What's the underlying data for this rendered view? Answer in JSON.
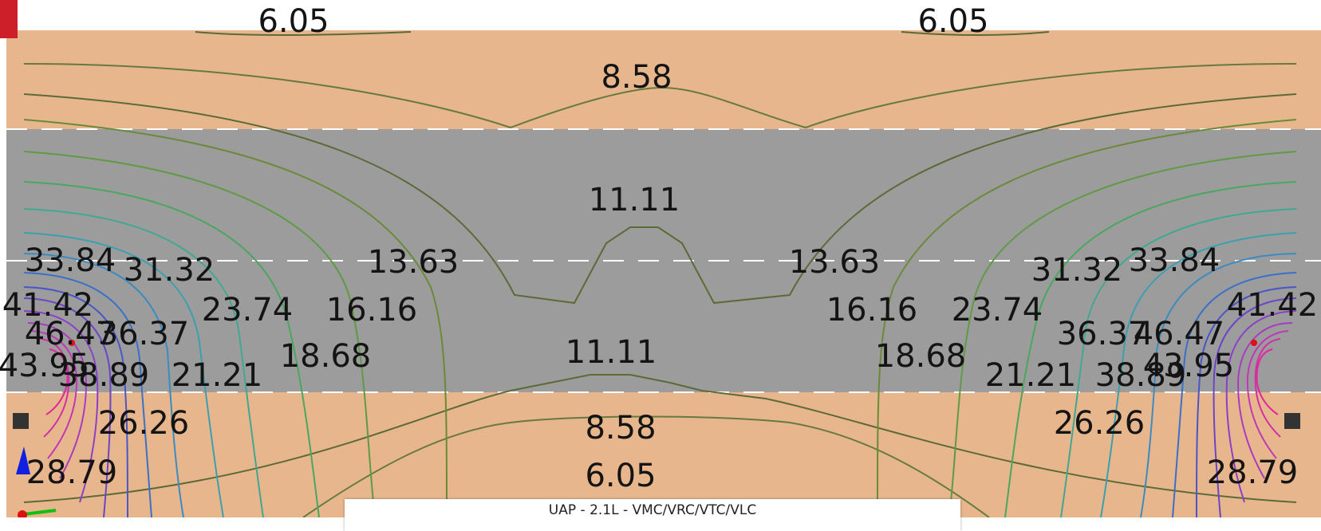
{
  "title": "",
  "colors": {
    "slab": "#e8b68c",
    "beam": "#9c9c9c",
    "gridline": "#ffffff",
    "label": "#141414",
    "support": "#333333",
    "axis_x": "#e01010",
    "axis_y": "#10c010",
    "axis_z": "#1020e0"
  },
  "contour_labels": [
    {
      "id": "c-605-tl",
      "text": "6.05"
    },
    {
      "id": "c-605-tr",
      "text": "6.05"
    },
    {
      "id": "c-858-t",
      "text": "8.58"
    },
    {
      "id": "c-1111-t",
      "text": "11.11"
    },
    {
      "id": "c-3384-l",
      "text": "33.84"
    },
    {
      "id": "c-3132-l",
      "text": "31.32"
    },
    {
      "id": "c-1363-l",
      "text": "13.63"
    },
    {
      "id": "c-1363-r",
      "text": "13.63"
    },
    {
      "id": "c-3132-r",
      "text": "31.32"
    },
    {
      "id": "c-3384-r",
      "text": "33.84"
    },
    {
      "id": "c-4142-l",
      "text": "41.42"
    },
    {
      "id": "c-2374-l",
      "text": "23.74"
    },
    {
      "id": "c-1616-l",
      "text": "16.16"
    },
    {
      "id": "c-1616-r",
      "text": "16.16"
    },
    {
      "id": "c-2374-r",
      "text": "23.74"
    },
    {
      "id": "c-4142-r",
      "text": "41.42"
    },
    {
      "id": "c-4647-l",
      "text": "46.47"
    },
    {
      "id": "c-3637-l",
      "text": "36.37"
    },
    {
      "id": "c-3637-r",
      "text": "36.37"
    },
    {
      "id": "c-4647-r",
      "text": "46.47"
    },
    {
      "id": "c-1868-l",
      "text": "18.68"
    },
    {
      "id": "c-1111-b",
      "text": "11.11"
    },
    {
      "id": "c-1868-r",
      "text": "18.68"
    },
    {
      "id": "c-4395-l",
      "text": "43.95"
    },
    {
      "id": "c-3889-l",
      "text": "38.89"
    },
    {
      "id": "c-2121-l",
      "text": "21.21"
    },
    {
      "id": "c-2121-r",
      "text": "21.21"
    },
    {
      "id": "c-3889-r",
      "text": "38.89"
    },
    {
      "id": "c-4395-r",
      "text": "43.95"
    },
    {
      "id": "c-2626-l",
      "text": "26.26"
    },
    {
      "id": "c-858-b",
      "text": "8.58"
    },
    {
      "id": "c-2626-r",
      "text": "26.26"
    },
    {
      "id": "c-2879-l",
      "text": "28.79"
    },
    {
      "id": "c-605-b",
      "text": "6.05"
    },
    {
      "id": "c-2879-r",
      "text": "28.79"
    }
  ],
  "caption": "UAP - 2.1L - VMC/VRC/VTC/VLC"
}
